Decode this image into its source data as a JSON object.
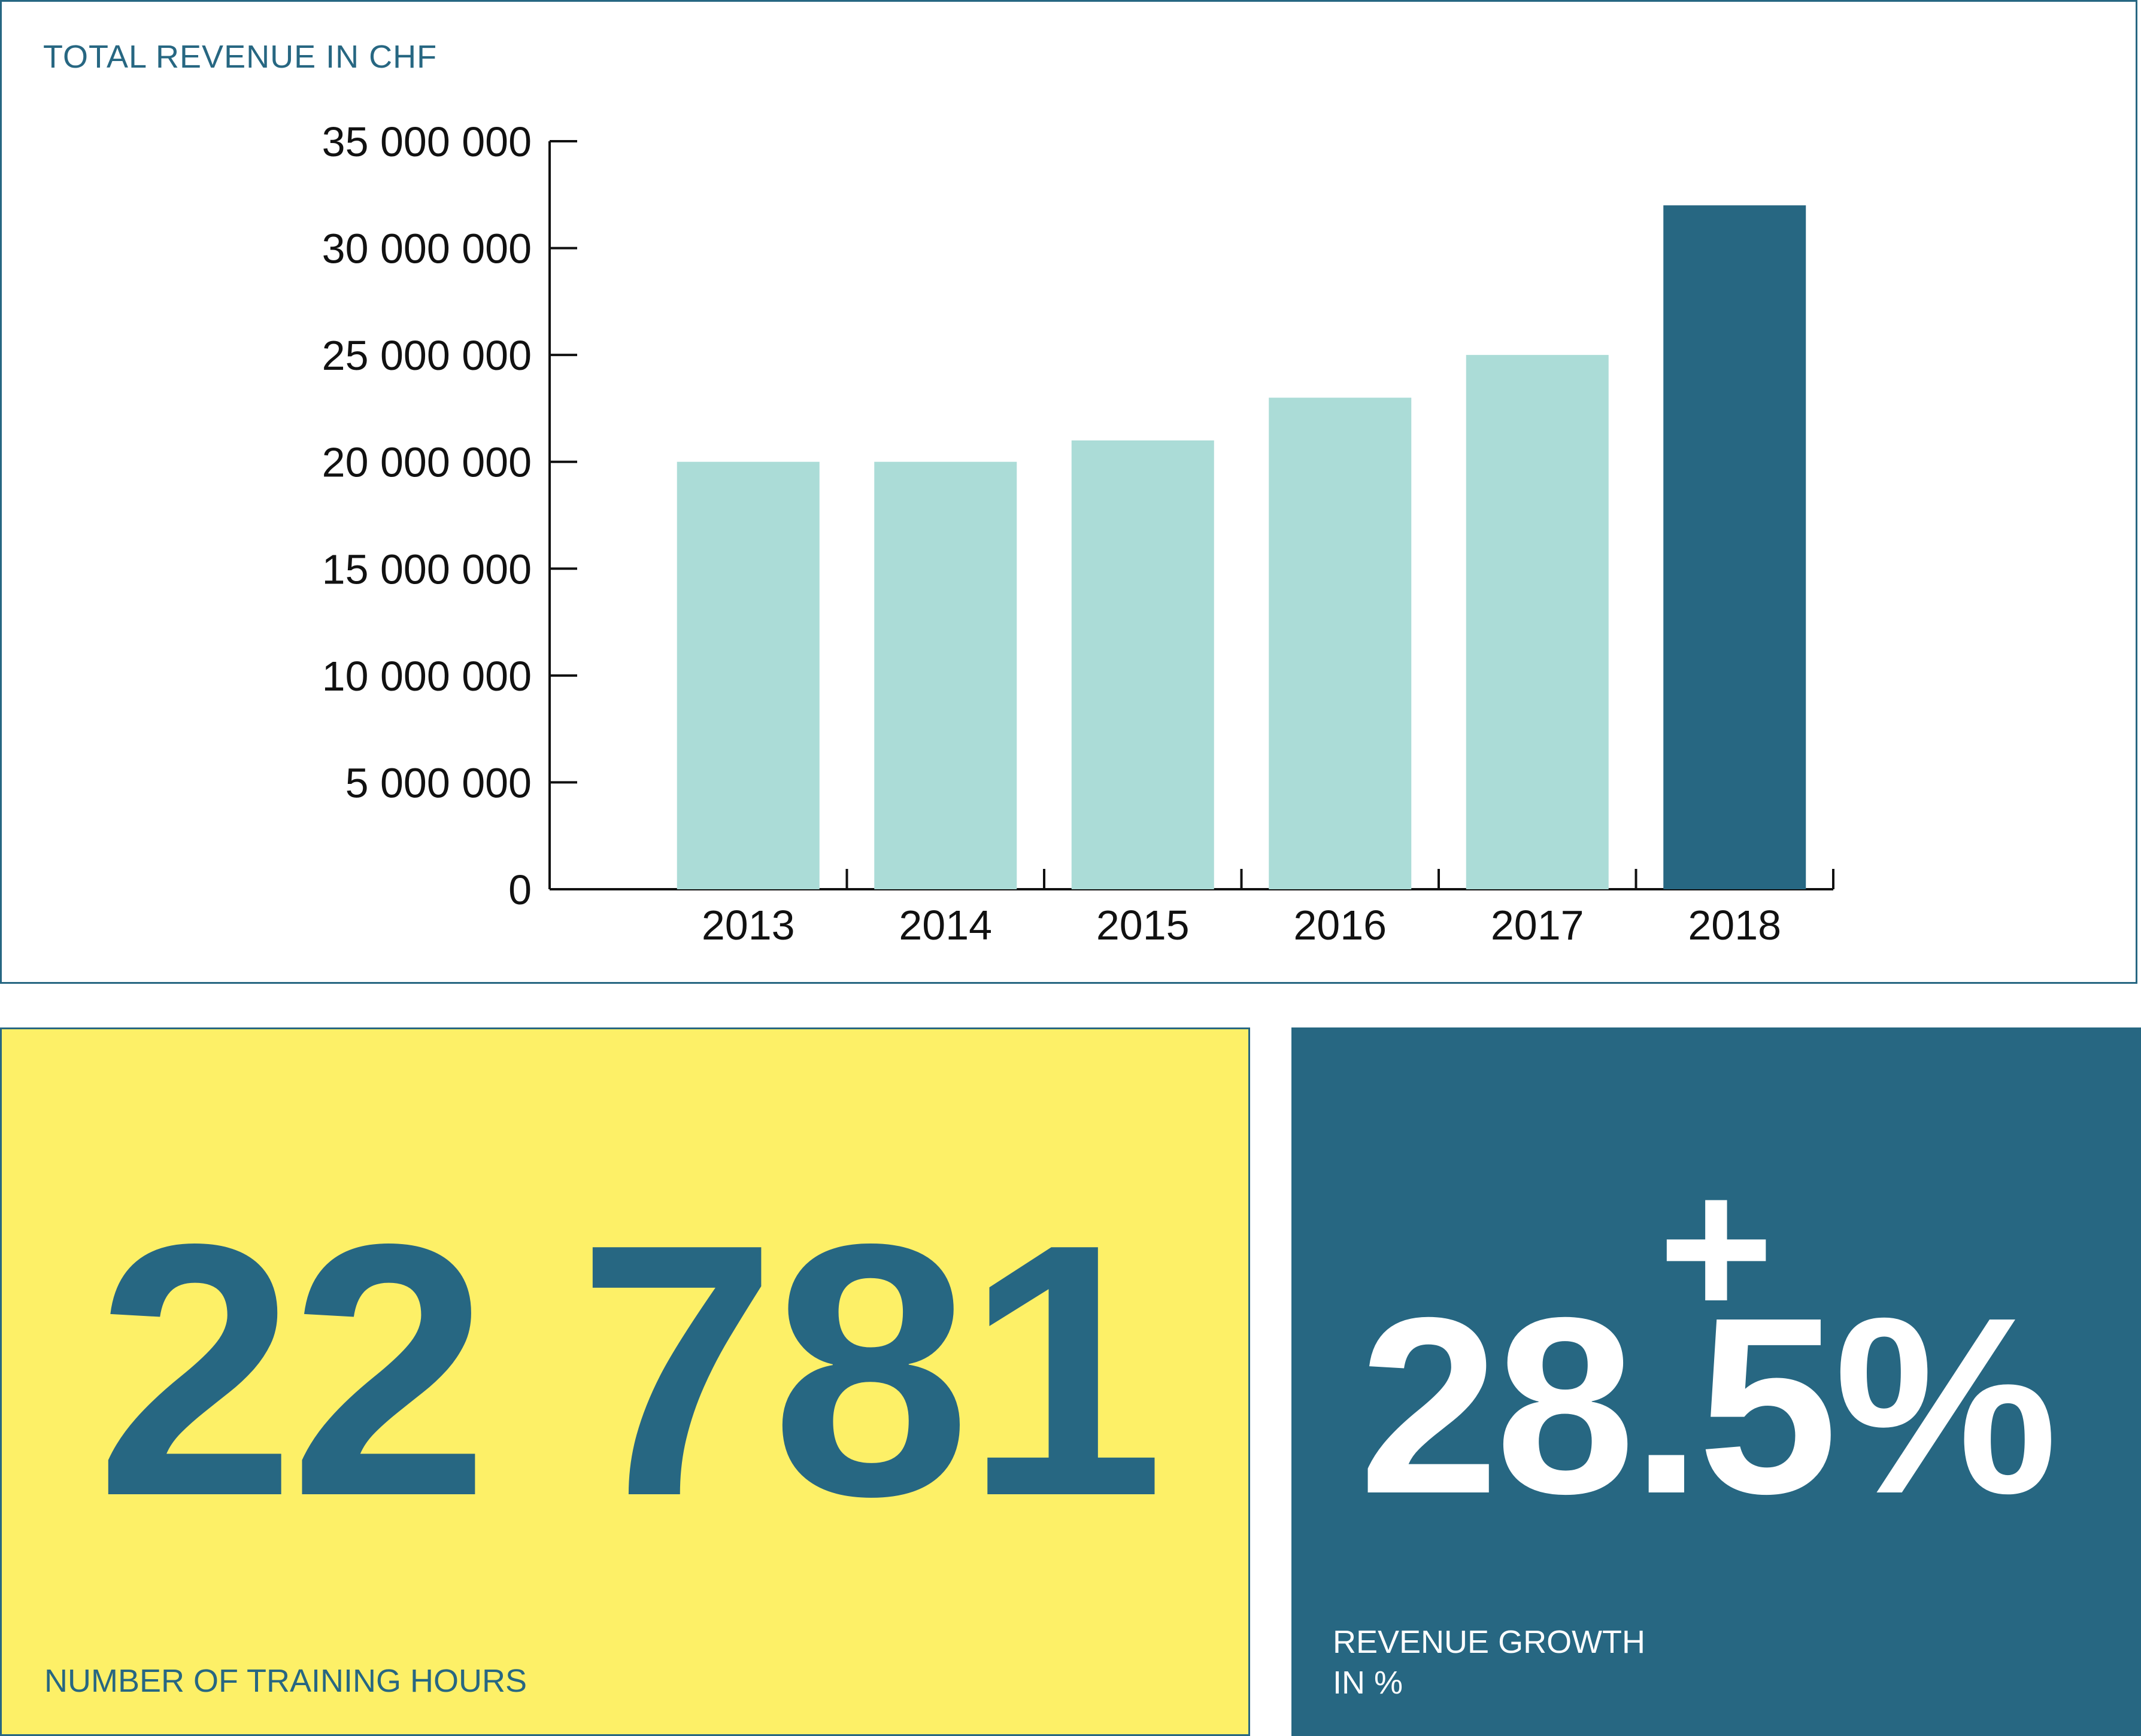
{
  "chart_data": {
    "type": "bar",
    "title": "TOTAL REVENUE IN CHF",
    "categories": [
      "2013",
      "2014",
      "2015",
      "2016",
      "2017",
      "2018"
    ],
    "values": [
      20000000,
      20000000,
      21000000,
      23000000,
      25000000,
      32000000
    ],
    "ylim": [
      0,
      35000000
    ],
    "yticks": [
      0,
      5000000,
      10000000,
      15000000,
      20000000,
      25000000,
      30000000,
      35000000
    ],
    "ytick_labels": [
      "0",
      "5 000 000",
      "10 000 000",
      "15 000 000",
      "20 000 000",
      "25 000 000",
      "30 000 000",
      "35 000 000"
    ],
    "xlabel": "",
    "ylabel": "",
    "grid": false,
    "colors": {
      "default_bar": "#abdcd7",
      "highlight_bar": "#276782",
      "axis": "#111111"
    },
    "highlight_category": "2018"
  },
  "stats": {
    "hours": {
      "value": "22 781",
      "label": "NUMBER OF TRAINING HOURS"
    },
    "growth": {
      "prefix": "+",
      "value": "28.5%",
      "label_line1": "REVENUE GROWTH",
      "label_line2": "IN %"
    }
  },
  "colors": {
    "brand": "#276782",
    "yellow": "#fdf067",
    "mint": "#abdcd7"
  }
}
